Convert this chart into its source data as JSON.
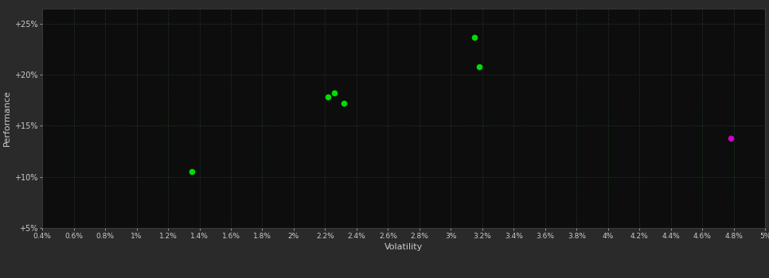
{
  "background_color": "#2a2a2a",
  "plot_bg_color": "#0d0d0d",
  "grid_color": "#2d4a2d",
  "text_color": "#cccccc",
  "xlabel": "Volatility",
  "ylabel": "Performance",
  "xlim": [
    0.004,
    0.05
  ],
  "ylim": [
    0.05,
    0.265
  ],
  "xticks": [
    0.004,
    0.006,
    0.008,
    0.01,
    0.012,
    0.014,
    0.016,
    0.018,
    0.02,
    0.022,
    0.024,
    0.026,
    0.028,
    0.03,
    0.032,
    0.034,
    0.036,
    0.038,
    0.04,
    0.042,
    0.044,
    0.046,
    0.048,
    0.05
  ],
  "xtick_labels": [
    "0.4%",
    "0.6%",
    "0.8%",
    "1%",
    "1.2%",
    "1.4%",
    "1.6%",
    "1.8%",
    "2%",
    "2.2%",
    "2.4%",
    "2.6%",
    "2.8%",
    "3%",
    "3.2%",
    "3.4%",
    "3.6%",
    "3.8%",
    "4%",
    "4.2%",
    "4.4%",
    "4.6%",
    "4.8%",
    "5%"
  ],
  "yticks": [
    0.05,
    0.1,
    0.15,
    0.2,
    0.25
  ],
  "ytick_labels": [
    "+5%",
    "+10%",
    "+15%",
    "+20%",
    "+25%"
  ],
  "green_points": [
    [
      0.0135,
      0.105
    ],
    [
      0.0222,
      0.178
    ],
    [
      0.0226,
      0.182
    ],
    [
      0.0232,
      0.172
    ],
    [
      0.0318,
      0.208
    ],
    [
      0.0315,
      0.237
    ]
  ],
  "magenta_points": [
    [
      0.0478,
      0.138
    ]
  ],
  "green_color": "#00dd00",
  "magenta_color": "#cc00cc",
  "marker_size": 5.5
}
